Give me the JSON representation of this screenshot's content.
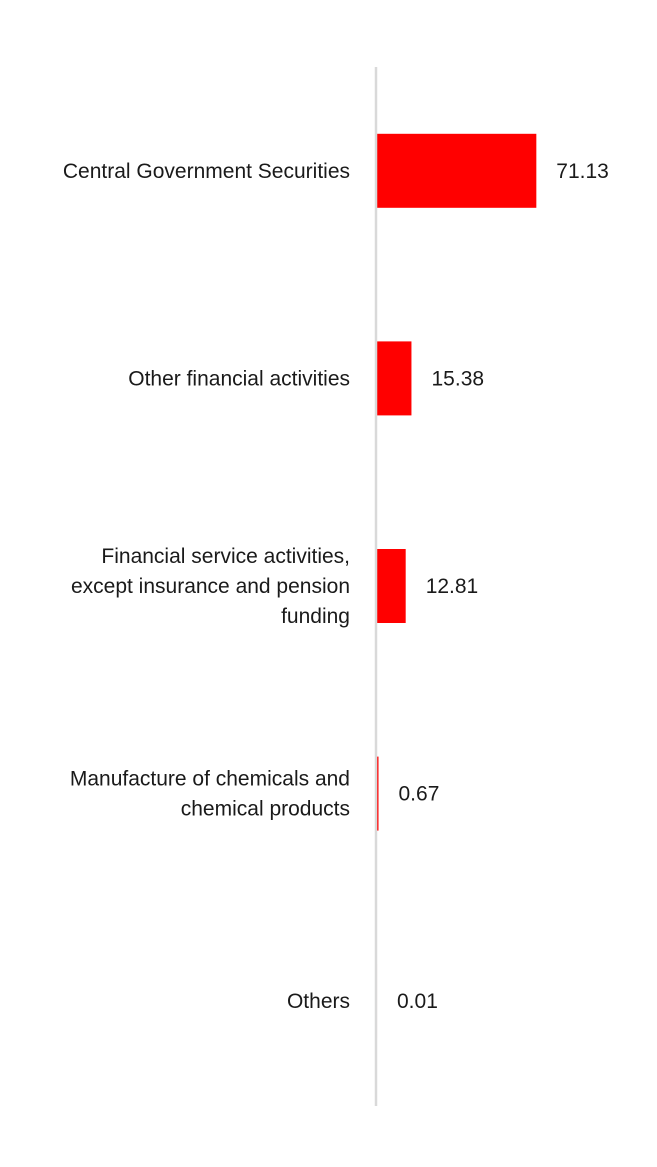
{
  "chart_data": {
    "type": "bar",
    "orientation": "horizontal",
    "categories": [
      "Central Government Securities",
      "Other financial activities",
      "Financial service activities, except insurance and pension funding",
      "Manufacture of chemicals and chemical products",
      "Others"
    ],
    "category_lines": [
      [
        "Central Government Securities"
      ],
      [
        "Other financial activities"
      ],
      [
        "Financial service activities,",
        "except insurance and pension",
        "funding"
      ],
      [
        "Manufacture of chemicals and",
        "chemical products"
      ],
      [
        "Others"
      ]
    ],
    "values": [
      71.13,
      15.38,
      12.81,
      0.67,
      0.01
    ],
    "value_labels": [
      "71.13",
      "15.38",
      "12.81",
      "0.67",
      "0.01"
    ],
    "xlim": [
      0,
      100
    ],
    "grid": false,
    "legend": "none",
    "colors": {
      "bar": "#ff0000",
      "axis": "#d9d9d9",
      "text": "#1a1a1a"
    }
  }
}
